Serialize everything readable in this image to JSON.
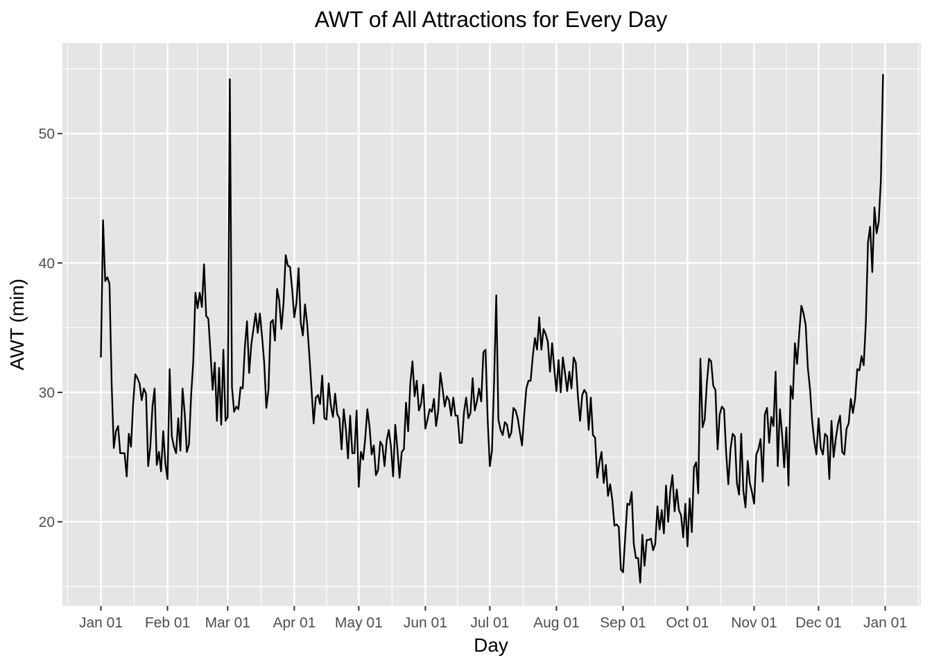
{
  "chart_data": {
    "type": "line",
    "title": "AWT of All Attractions for Every Day",
    "xlabel": "Day",
    "ylabel": "AWT (min)",
    "x_tick_labels": [
      "Jan 01",
      "Feb 01",
      "Mar 01",
      "Apr 01",
      "May 01",
      "Jun 01",
      "Jul 01",
      "Aug 01",
      "Sep 01",
      "Oct 01",
      "Nov 01",
      "Dec 01",
      "Jan 01"
    ],
    "y_ticks": [
      20,
      30,
      40,
      50
    ],
    "ylim": [
      13.5,
      57
    ],
    "grid": true,
    "legend": "none",
    "colors": {
      "panel": "#e5e5e5",
      "grid": "#ffffff",
      "line": "#000000",
      "tick": "#4d4d4d"
    },
    "series": [
      {
        "x_start": "Jan 01",
        "x_step_days": 1,
        "values": [
          32.7,
          43.3,
          38.6,
          38.9,
          38.4,
          30.7,
          25.7,
          27.0,
          27.4,
          25.3,
          25.3,
          25.3,
          23.5,
          26.8,
          25.8,
          29.1,
          31.4,
          31.1,
          30.7,
          29.4,
          30.3,
          29.9,
          24.3,
          25.8,
          28.9,
          30.3,
          24.4,
          25.4,
          23.9,
          27.0,
          24.5,
          23.3,
          31.8,
          26.6,
          25.8,
          25.3,
          28.0,
          25.5,
          30.3,
          28.4,
          25.4,
          26.0,
          29.8,
          32.4,
          37.7,
          36.5,
          37.7,
          36.6,
          39.9,
          35.9,
          35.7,
          33.1,
          30.2,
          32.3,
          27.8,
          31.9,
          27.5,
          33.3,
          27.8,
          28.1,
          54.2,
          30.4,
          28.5,
          28.9,
          28.7,
          30.4,
          30.3,
          33.5,
          35.5,
          31.5,
          33.7,
          34.9,
          36.1,
          34.6,
          36.1,
          34.3,
          32.3,
          28.8,
          30.2,
          35.4,
          35.6,
          34.0,
          38.0,
          37.1,
          34.9,
          36.9,
          40.6,
          39.8,
          39.7,
          38.0,
          35.8,
          36.9,
          39.6,
          35.4,
          34.4,
          36.8,
          35.3,
          32.9,
          30.3,
          27.6,
          29.6,
          29.8,
          29.1,
          31.3,
          28.0,
          27.9,
          30.7,
          29.0,
          28.1,
          29.9,
          28.3,
          28.0,
          25.6,
          28.7,
          27.2,
          24.9,
          28.2,
          25.3,
          25.3,
          28.6,
          22.7,
          25.4,
          24.8,
          26.4,
          28.7,
          27.4,
          25.2,
          25.9,
          23.6,
          24.0,
          26.2,
          25.9,
          24.3,
          26.3,
          27.1,
          25.8,
          23.5,
          27.5,
          25.6,
          23.4,
          25.4,
          25.6,
          29.2,
          27.0,
          30.7,
          32.4,
          29.7,
          30.9,
          28.6,
          29.1,
          30.6,
          27.2,
          27.9,
          28.7,
          28.5,
          29.5,
          27.4,
          28.6,
          31.5,
          30.3,
          28.9,
          29.7,
          29.4,
          28.2,
          29.6,
          28.2,
          28.2,
          26.1,
          26.1,
          28.5,
          29.6,
          28.0,
          28.4,
          31.1,
          28.6,
          29.3,
          30.3,
          29.3,
          33.1,
          33.3,
          27.9,
          24.3,
          25.5,
          30.9,
          37.5,
          27.9,
          27.1,
          26.7,
          27.7,
          27.5,
          26.5,
          26.9,
          28.8,
          28.6,
          28.0,
          26.9,
          25.9,
          28.3,
          30.3,
          30.9,
          30.9,
          32.8,
          34.2,
          33.3,
          35.8,
          33.3,
          34.9,
          34.5,
          33.9,
          31.6,
          33.8,
          31.8,
          30.1,
          32.5,
          30.0,
          32.7,
          31.5,
          30.1,
          31.6,
          30.3,
          32.7,
          32.3,
          29.7,
          27.8,
          29.8,
          30.2,
          29.9,
          27.1,
          29.6,
          26.7,
          26.5,
          23.4,
          24.6,
          25.4,
          23.0,
          24.4,
          22.0,
          22.9,
          21.7,
          19.7,
          19.8,
          19.6,
          16.3,
          16.1,
          18.8,
          21.4,
          21.3,
          22.3,
          18.3,
          17.2,
          17.2,
          15.3,
          19.0,
          16.6,
          18.6,
          18.6,
          18.7,
          17.8,
          18.3,
          21.2,
          19.4,
          20.9,
          19.1,
          22.8,
          20.0,
          22.4,
          23.6,
          20.8,
          22.5,
          20.9,
          20.5,
          18.8,
          21.4,
          18.1,
          21.8,
          19.2,
          24.2,
          24.6,
          22.2,
          32.6,
          27.3,
          27.9,
          30.7,
          32.6,
          32.4,
          30.5,
          30.2,
          25.6,
          28.3,
          28.9,
          28.7,
          25.3,
          22.9,
          25.6,
          26.8,
          26.6,
          23.0,
          22.1,
          26.8,
          22.4,
          21.1,
          24.7,
          23.0,
          22.3,
          21.4,
          25.2,
          25.6,
          26.4,
          23.1,
          28.3,
          28.8,
          26.1,
          28.1,
          27.4,
          31.6,
          24.3,
          28.7,
          26.8,
          24.2,
          27.3,
          22.8,
          30.5,
          29.5,
          33.8,
          32.2,
          34.6,
          36.7,
          36.1,
          35.2,
          31.9,
          30.3,
          27.8,
          26.2,
          25.2,
          28.0,
          25.7,
          25.2,
          26.8,
          26.6,
          23.3,
          27.8,
          25.0,
          26.4,
          27.5,
          28.2,
          25.4,
          25.2,
          27.2,
          27.6,
          29.5,
          28.4,
          29.5,
          31.8,
          31.7,
          32.8,
          32.1,
          35.4,
          41.6,
          42.8,
          39.3,
          44.3,
          42.3,
          43.2,
          46.4,
          54.6
        ]
      }
    ]
  }
}
